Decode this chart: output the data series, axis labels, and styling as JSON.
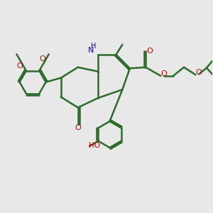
{
  "background_color": "#e8e8e8",
  "bond_color": "#2d6b2d",
  "bond_width": 1.8,
  "atom_colors": {
    "O": "#cc0000",
    "N": "#0000cc",
    "C": "#2d6b2d",
    "H": "#2d6b2d"
  },
  "figsize": [
    3.0,
    3.0
  ],
  "dpi": 100
}
